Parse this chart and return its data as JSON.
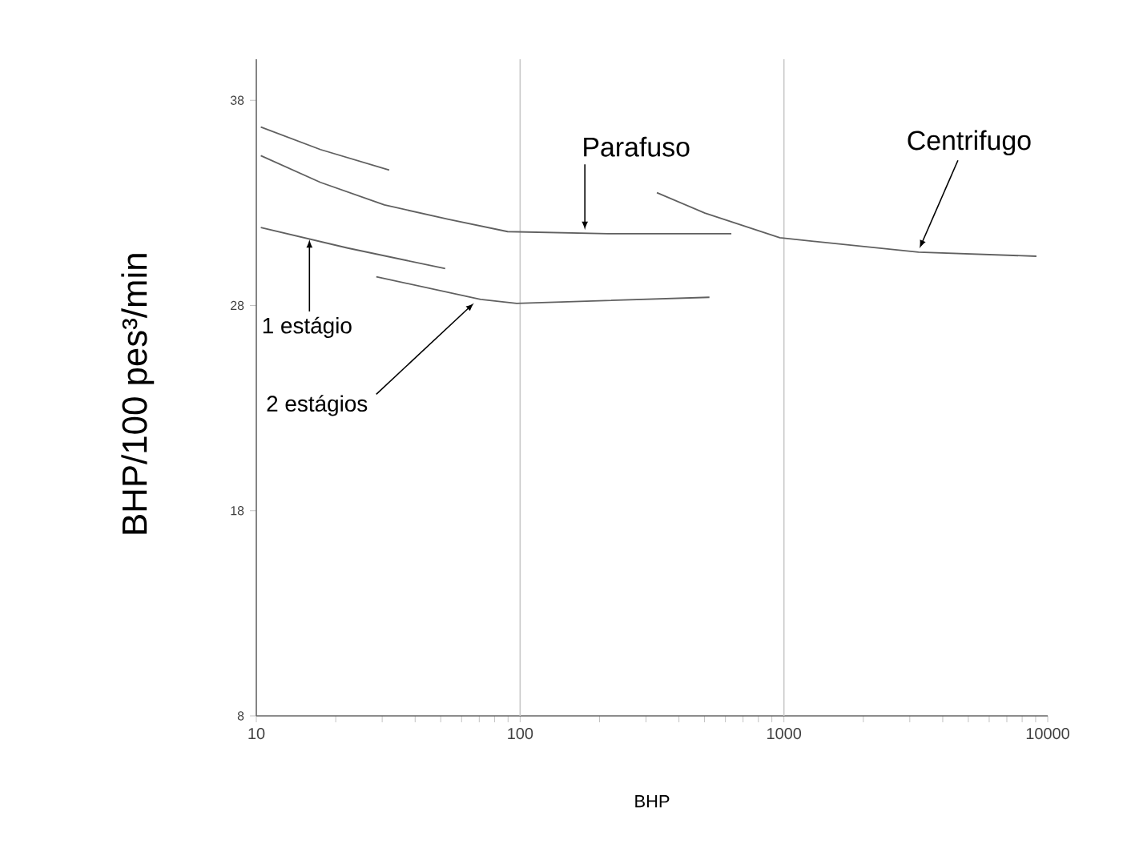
{
  "chart_data": {
    "type": "line",
    "xlabel": "BHP",
    "ylabel": "BHP/100 pes³/min",
    "log": "x",
    "xlim": [
      10,
      10000
    ],
    "ylim": [
      8,
      40
    ],
    "xticks": [
      10,
      {
        "value": 20,
        "label": null
      },
      {
        "value": 30,
        "label": null
      },
      {
        "value": 40,
        "label": null
      },
      {
        "value": 50,
        "label": null
      },
      {
        "value": 60,
        "label": null
      },
      {
        "value": 70,
        "label": null
      },
      {
        "value": 80,
        "label": null
      },
      {
        "value": 90,
        "label": null
      },
      100,
      {
        "value": 200,
        "label": null
      },
      {
        "value": 300,
        "label": null
      },
      {
        "value": 400,
        "label": null
      },
      {
        "value": 500,
        "label": null
      },
      {
        "value": 600,
        "label": null
      },
      {
        "value": 700,
        "label": null
      },
      {
        "value": 800,
        "label": null
      },
      {
        "value": 900,
        "label": null
      },
      1000,
      {
        "value": 2000,
        "label": null
      },
      {
        "value": 3000,
        "label": null
      },
      {
        "value": 4000,
        "label": null
      },
      {
        "value": 5000,
        "label": null
      },
      {
        "value": 6000,
        "label": null
      },
      {
        "value": 7000,
        "label": null
      },
      {
        "value": 8000,
        "label": null
      },
      {
        "value": 9000,
        "label": null
      },
      10000
    ],
    "yticks": [
      8,
      18,
      28,
      38
    ],
    "marker": "none",
    "line_style": "solid",
    "ref_lines": [
      {
        "axis": "x",
        "value": 100,
        "color": "#c8c8c8"
      },
      {
        "axis": "x",
        "value": 1000,
        "color": "#c8c8c8"
      }
    ],
    "annotations": [
      {
        "text": "Parafuso",
        "x": 176,
        "y": 31.6
      },
      {
        "text": "Centrifugo",
        "x": 3220,
        "y": 30.7
      },
      {
        "text": "1 estágio",
        "x": 15.9,
        "y": 31.3
      },
      {
        "text": "2 estágios",
        "x": 67.8,
        "y": 28.2
      }
    ],
    "series": [
      {
        "color": "#606060",
        "x": [
          10.4,
          17.5,
          31.9
        ],
        "values": [
          36.7,
          35.6,
          34.6
        ]
      },
      {
        "color": "#606060",
        "x": [
          10.4,
          17.5,
          30.6,
          53.5,
          89.7,
          216,
          632
        ],
        "values": [
          35.3,
          34.0,
          32.9,
          32.2,
          31.6,
          31.5,
          31.5
        ]
      },
      {
        "color": "#606060",
        "x": [
          10.4,
          22.2,
          52.0
        ],
        "values": [
          31.8,
          30.8,
          29.8
        ]
      },
      {
        "color": "#606060",
        "x": [
          28.5,
          70.8,
          97.0,
          522
        ],
        "values": [
          29.4,
          28.3,
          28.1,
          28.4
        ]
      },
      {
        "color": "#606060",
        "x": [
          330,
          502,
          965,
          3237,
          9062
        ],
        "values": [
          33.5,
          32.5,
          31.3,
          30.6,
          30.4
        ]
      }
    ]
  }
}
